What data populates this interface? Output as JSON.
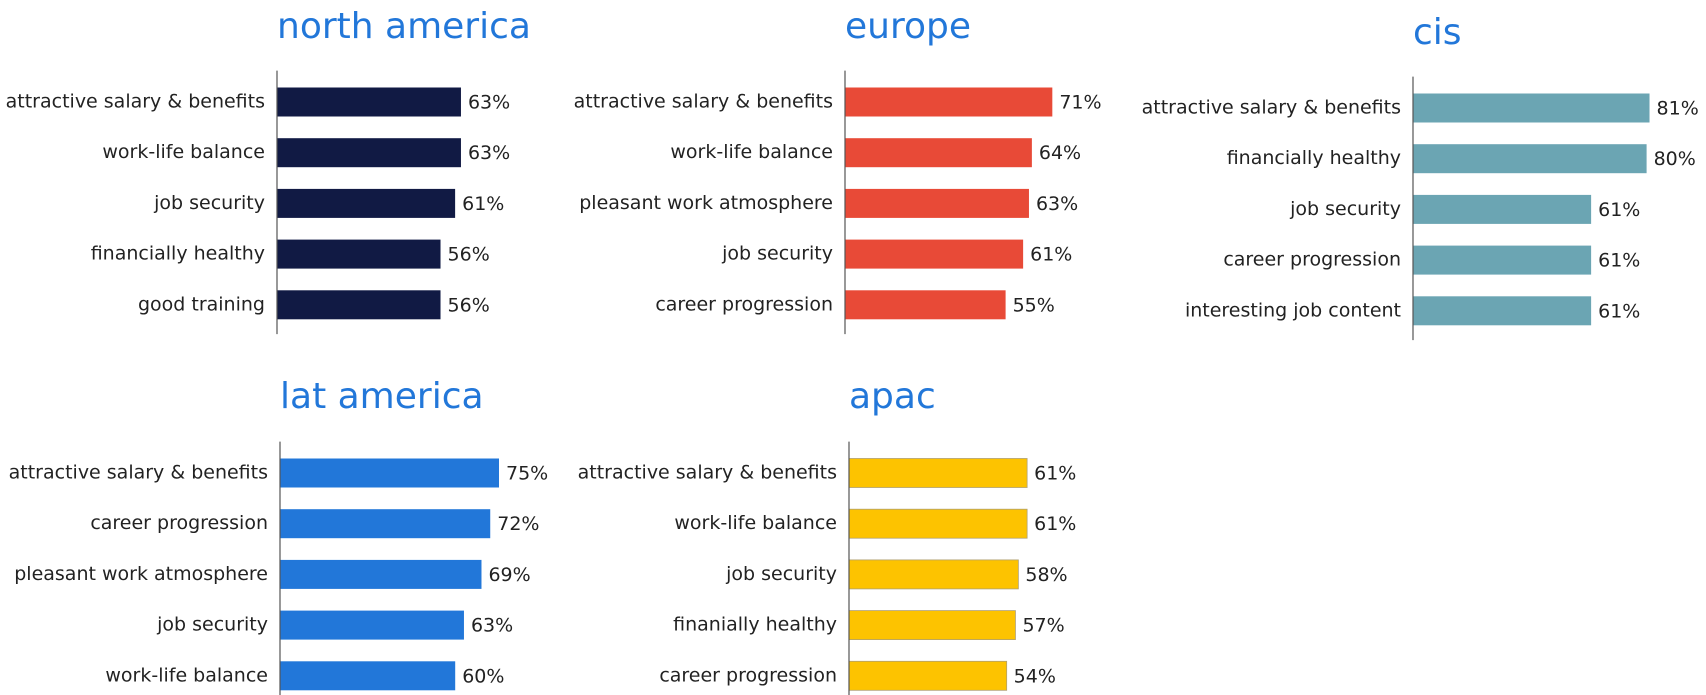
{
  "chart_data": [
    {
      "type": "bar",
      "orientation": "horizontal",
      "title": "north america",
      "categories": [
        "attractive salary & benefits",
        "work-life balance",
        "job security",
        "financially healthy",
        "good training"
      ],
      "values": [
        63,
        63,
        61,
        56,
        56
      ],
      "value_labels": [
        "63%",
        "63%",
        "61%",
        "56%",
        "56%"
      ],
      "color": "#111a44",
      "xlim": [
        0,
        100
      ]
    },
    {
      "type": "bar",
      "orientation": "horizontal",
      "title": "europe",
      "categories": [
        "attractive salary & benefits",
        "work-life balance",
        "pleasant work atmosphere",
        "job security",
        "career progression"
      ],
      "values": [
        71,
        64,
        63,
        61,
        55
      ],
      "value_labels": [
        "71%",
        "64%",
        "63%",
        "61%",
        "55%"
      ],
      "color": "#e84a37",
      "xlim": [
        0,
        100
      ]
    },
    {
      "type": "bar",
      "orientation": "horizontal",
      "title": "cis",
      "categories": [
        "attractive salary & benefits",
        "financially healthy",
        "job security",
        "career progression",
        "interesting job content"
      ],
      "values": [
        81,
        80,
        61,
        61,
        61
      ],
      "value_labels": [
        "81%",
        "80%",
        "61%",
        "61%",
        "61%"
      ],
      "color": "#6ba5b3",
      "xlim": [
        0,
        100
      ]
    },
    {
      "type": "bar",
      "orientation": "horizontal",
      "title": "lat america",
      "categories": [
        "attractive salary & benefits",
        "career progression",
        "pleasant work atmosphere",
        "job security",
        "work-life balance"
      ],
      "values": [
        75,
        72,
        69,
        63,
        60
      ],
      "value_labels": [
        "75%",
        "72%",
        "69%",
        "63%",
        "60%"
      ],
      "color": "#2277d9",
      "xlim": [
        0,
        100
      ]
    },
    {
      "type": "bar",
      "orientation": "horizontal",
      "title": "apac",
      "categories": [
        "attractive salary & benefits",
        "work-life balance",
        "job security",
        "finanially healthy",
        "career progression"
      ],
      "values": [
        61,
        61,
        58,
        57,
        54
      ],
      "value_labels": [
        "61%",
        "61%",
        "58%",
        "57%",
        "54%"
      ],
      "color": "#fdc300",
      "xlim": [
        0,
        100
      ]
    }
  ]
}
